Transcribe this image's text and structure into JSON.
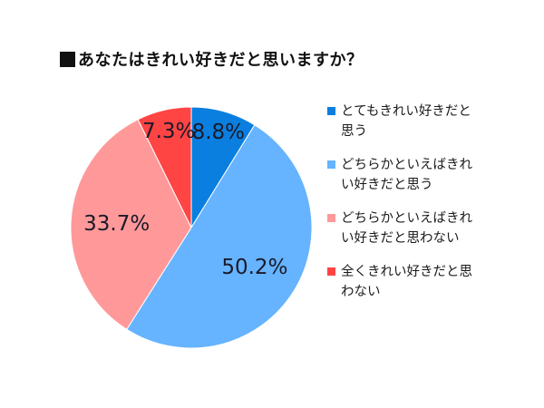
{
  "title": "あなたはきれい好きだと思いますか？",
  "title_marker": "■",
  "legend": {
    "items": [
      {
        "label_line1": "とてもきれい好きだと",
        "label_line2": "思う",
        "color": "#0a7fdf"
      },
      {
        "label_line1": "どちらかといえばきれ",
        "label_line2": "い好きだと思う",
        "color": "#66b3ff"
      },
      {
        "label_line1": "どちらかといえばきれ",
        "label_line2": "い好きだと思わない",
        "color": "#ff9999"
      },
      {
        "label_line1": "全くきれい好きだと思",
        "label_line2": "わない",
        "color": "#ff4444"
      }
    ]
  },
  "slices": [
    {
      "label": "8.8%",
      "value": 8.8,
      "color": "#0a7fdf"
    },
    {
      "label": "50.2%",
      "value": 50.2,
      "color": "#66b3ff"
    },
    {
      "label": "33.7%",
      "value": 33.7,
      "color": "#ff9999"
    },
    {
      "label": "7.3%",
      "value": 7.3,
      "color": "#ff4444"
    }
  ],
  "chart_data": {
    "type": "pie",
    "title": "■あなたはきれい好きだと思いますか？",
    "categories": [
      "とてもきれい好きだと思う",
      "どちらかといえばきれい好きだと思う",
      "どちらかといえばきれい好きだと思わない",
      "全くきれい好きだと思わない"
    ],
    "values": [
      8.8,
      50.2,
      33.7,
      7.3
    ],
    "unit": "%",
    "colors": [
      "#0a7fdf",
      "#66b3ff",
      "#ff9999",
      "#ff4444"
    ],
    "start_angle": "12 o'clock",
    "direction": "clockwise",
    "legend_position": "right",
    "data_labels": [
      "8.8%",
      "50.2%",
      "33.7%",
      "7.3%"
    ]
  }
}
